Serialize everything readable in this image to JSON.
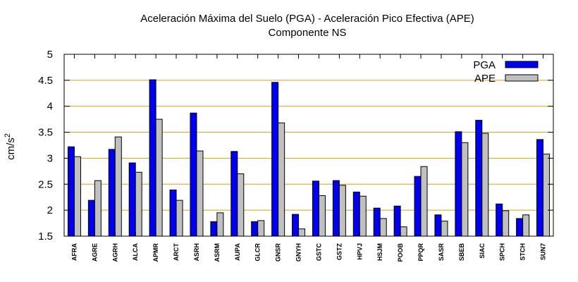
{
  "chart_data": {
    "type": "bar",
    "title": "Aceleración Máxima del Suelo (PGA) -  Aceleración Pico Efectiva (APE)",
    "subtitle": "Componente NS",
    "ylabel": "cm/s",
    "ylabel_sup": "2",
    "xlabel": "",
    "ylim": [
      1.5,
      5
    ],
    "yticks": [
      1.5,
      2,
      2.5,
      3,
      3.5,
      4,
      4.5,
      5
    ],
    "ytick_labels": [
      "1.5",
      "2",
      "2.5",
      "3",
      "3.5",
      "4",
      "4.5",
      "5"
    ],
    "grid": "horizontal",
    "legend_position": "top-right",
    "categories": [
      "AFRA",
      "AGRE",
      "AGRH",
      "ALCA",
      "APMR",
      "ARCT",
      "ASRH",
      "ASRM",
      "AUPA",
      "GLCR",
      "GNSR",
      "GNYH",
      "GSTC",
      "GSTZ",
      "HPVJ",
      "HSJM",
      "POOB",
      "PPQR",
      "SASR",
      "SBEB",
      "SIAC",
      "SPCH",
      "STCH",
      "SUN7"
    ],
    "series": [
      {
        "name": "PGA",
        "color": "#0000ee",
        "values": [
          3.22,
          2.19,
          3.17,
          2.91,
          4.51,
          2.39,
          3.87,
          1.78,
          3.13,
          1.78,
          4.46,
          1.92,
          2.56,
          2.57,
          2.35,
          2.04,
          2.08,
          2.65,
          1.91,
          3.51,
          3.73,
          2.12,
          1.84,
          3.36
        ]
      },
      {
        "name": "APE",
        "color": "#c0c0c0",
        "values": [
          3.03,
          2.57,
          3.41,
          2.73,
          3.75,
          2.19,
          3.14,
          1.95,
          2.7,
          1.8,
          3.68,
          1.64,
          2.28,
          2.48,
          2.27,
          1.84,
          1.68,
          2.84,
          1.79,
          3.3,
          3.48,
          1.99,
          1.91,
          3.08
        ]
      }
    ],
    "colors": {
      "grid": "#d4a017",
      "axis": "#000000",
      "bar_outline": "#000000"
    }
  }
}
